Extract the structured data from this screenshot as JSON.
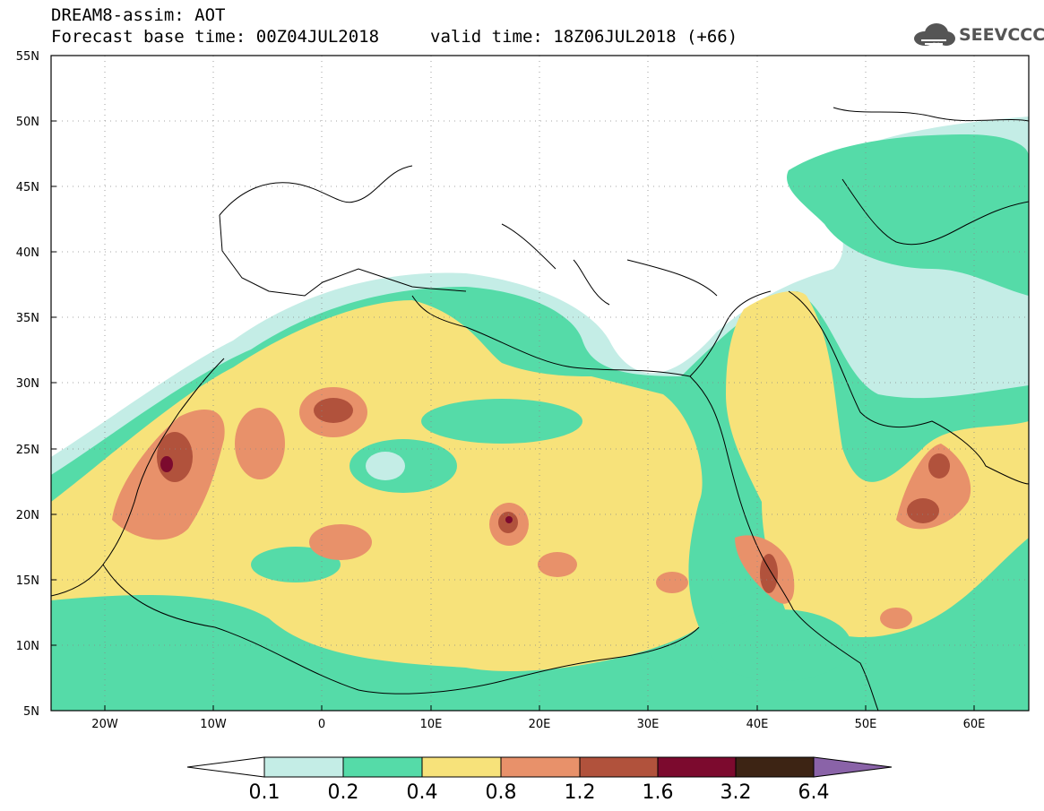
{
  "header": {
    "line1": "DREAM8-assim: AOT",
    "line2": "Forecast base time: 00Z04JUL2018",
    "line3": "valid time: 18Z06JUL2018 (+66)"
  },
  "logo": {
    "text": "SEEVCCC"
  },
  "map": {
    "lat_labels": [
      "55N",
      "50N",
      "45N",
      "40N",
      "35N",
      "30N",
      "25N",
      "20N",
      "15N",
      "10N",
      "5N"
    ],
    "lon_labels": [
      "20W",
      "10W",
      "0",
      "10E",
      "20E",
      "30E",
      "40E",
      "50E",
      "60E"
    ]
  },
  "colorbar": {
    "labels": [
      "0.1",
      "0.2",
      "0.4",
      "0.8",
      "1.2",
      "1.6",
      "3.2",
      "6.4"
    ],
    "colors": [
      "#ffffff",
      "#c4ede6",
      "#55dba8",
      "#f7e27a",
      "#e8916a",
      "#b1523c",
      "#7c0a2e",
      "#3d2414",
      "#8a63a8"
    ]
  }
}
